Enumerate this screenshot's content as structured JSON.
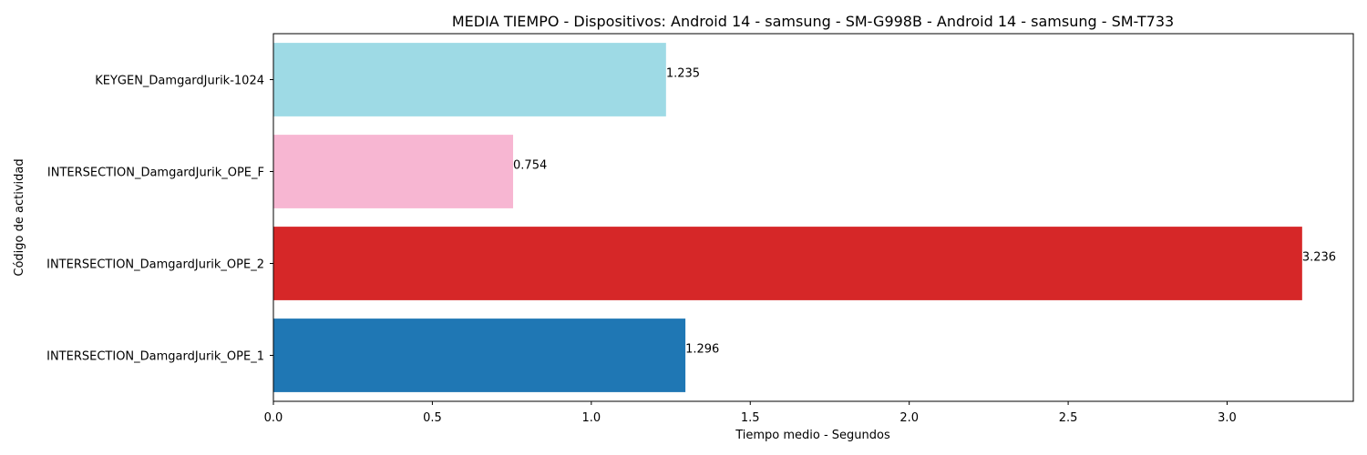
{
  "chart_data": {
    "type": "bar",
    "orientation": "horizontal",
    "title": "MEDIA TIEMPO - Dispositivos: Android 14 - samsung - SM-G998B - Android 14 - samsung - SM-T733",
    "xlabel": "Tiempo medio - Segundos",
    "ylabel": "Código de actividad",
    "xlim": [
      0,
      3.397
    ],
    "x_ticks": [
      0.0,
      0.5,
      1.0,
      1.5,
      2.0,
      2.5,
      3.0
    ],
    "x_tick_labels": [
      "0.0",
      "0.5",
      "1.0",
      "1.5",
      "2.0",
      "2.5",
      "3.0"
    ],
    "categories": [
      "INTERSECTION_DamgardJurik_OPE_1",
      "INTERSECTION_DamgardJurik_OPE_2",
      "INTERSECTION_DamgardJurik_OPE_F",
      "KEYGEN_DamgardJurik-1024"
    ],
    "values": [
      1.296,
      3.236,
      0.754,
      1.235
    ],
    "value_labels": [
      "1.296",
      "3.236",
      "0.754",
      "1.235"
    ],
    "colors": [
      "#1f77b4",
      "#d62728",
      "#f7b6d2",
      "#9edae5"
    ],
    "grid": false,
    "legend": "none"
  }
}
